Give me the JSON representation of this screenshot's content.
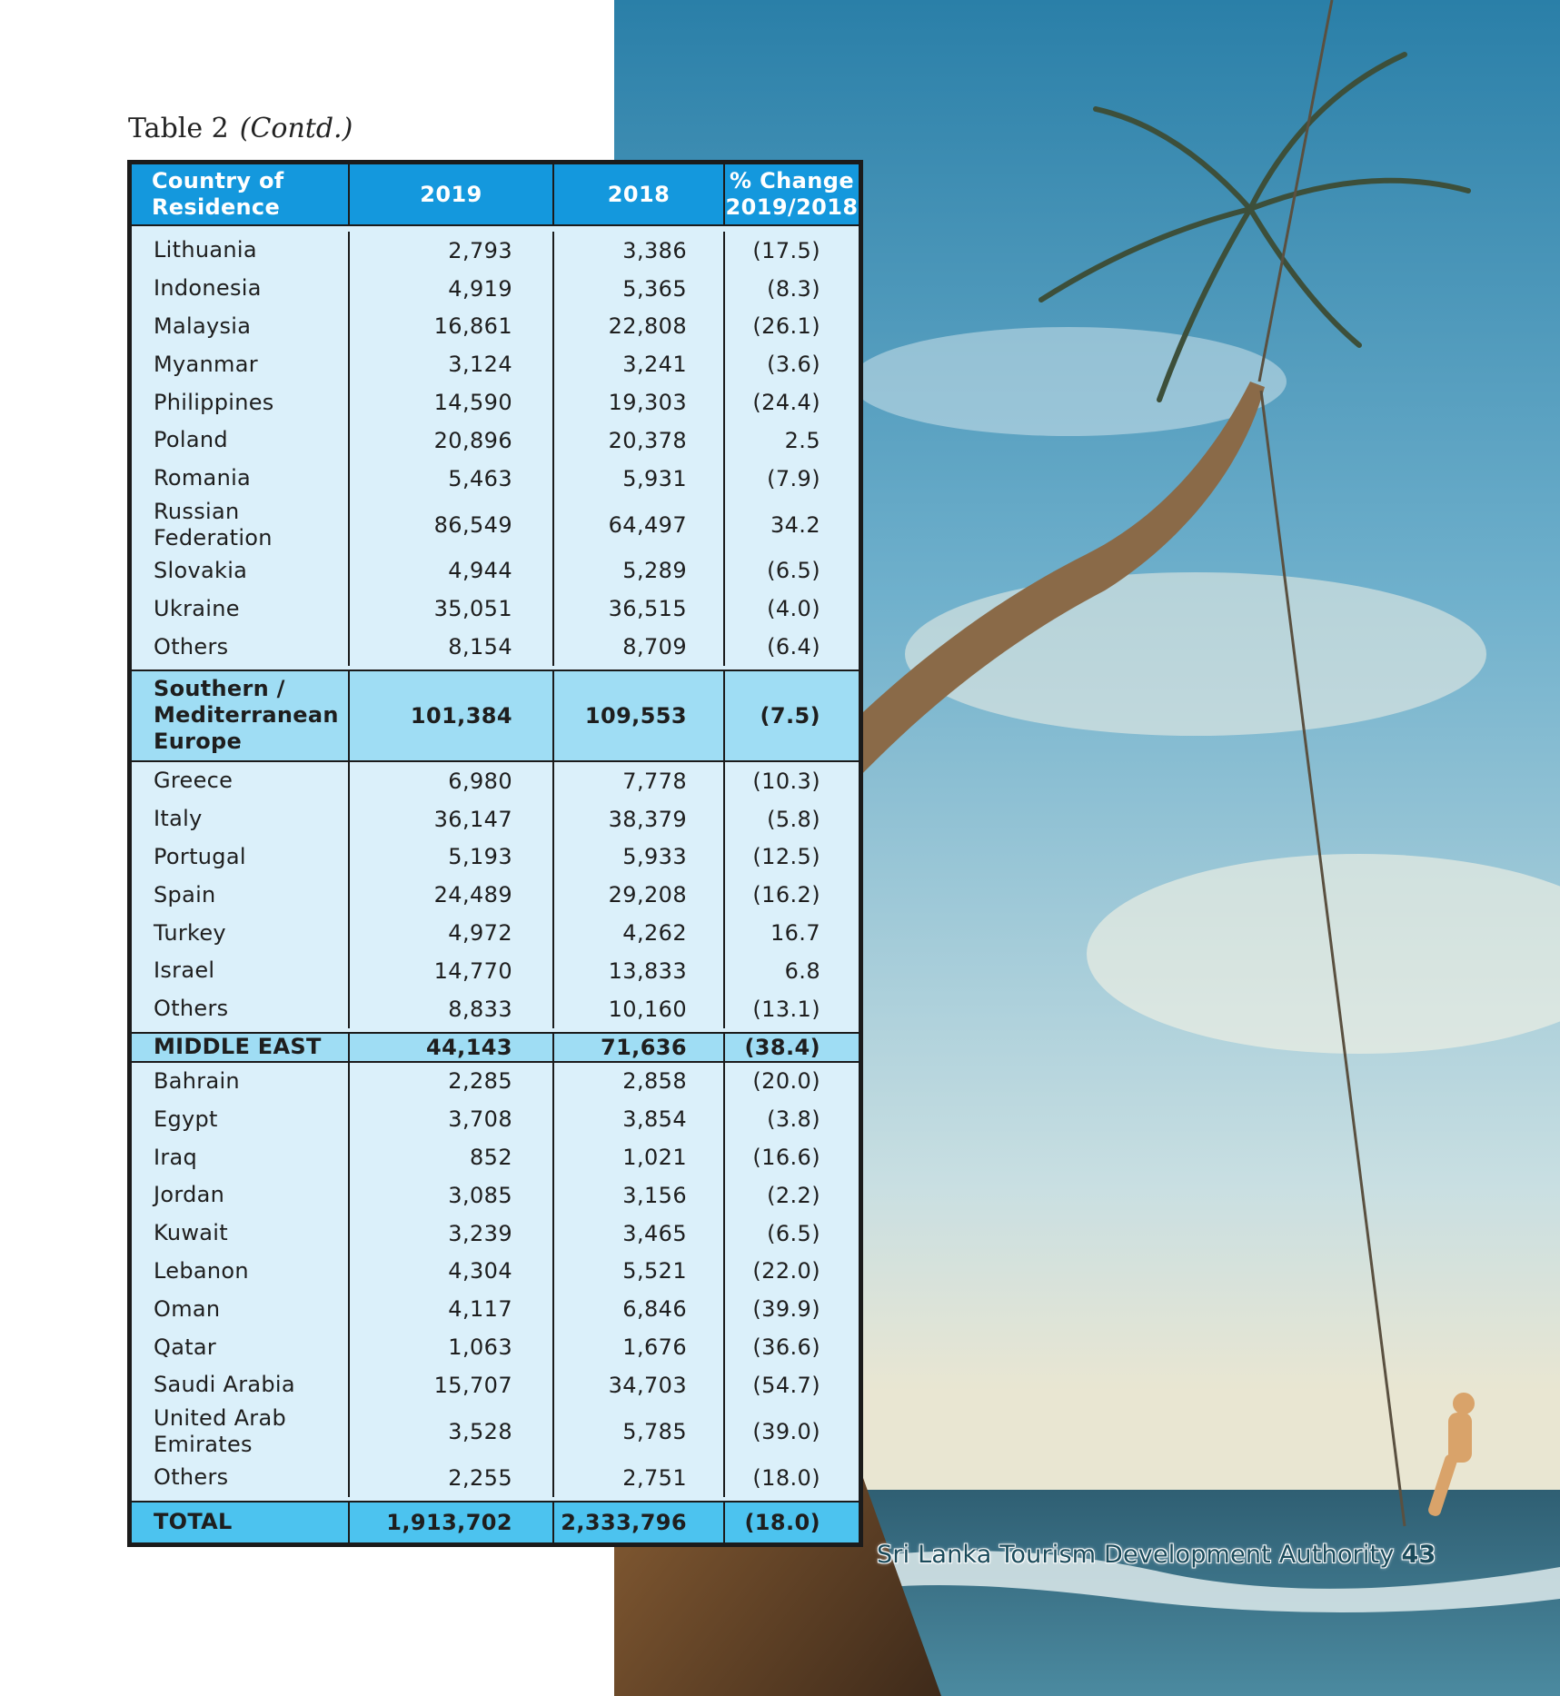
{
  "caption": {
    "title": "Table 2",
    "contd": "(Contd.)"
  },
  "header": {
    "country": "Country of Residence",
    "y2019": "2019",
    "y2018": "2018",
    "pct_line1": "% Change",
    "pct_line2": "2019/2018"
  },
  "group1": [
    {
      "name": "Lithuania",
      "v2019": "2,793",
      "v2018": "3,386",
      "pct": "(17.5)"
    },
    {
      "name": "Indonesia",
      "v2019": "4,919",
      "v2018": "5,365",
      "pct": "(8.3)"
    },
    {
      "name": "Malaysia",
      "v2019": "16,861",
      "v2018": "22,808",
      "pct": "(26.1)"
    },
    {
      "name": "Myanmar",
      "v2019": "3,124",
      "v2018": "3,241",
      "pct": "(3.6)"
    },
    {
      "name": "Philippines",
      "v2019": "14,590",
      "v2018": "19,303",
      "pct": "(24.4)"
    },
    {
      "name": "Poland",
      "v2019": "20,896",
      "v2018": "20,378",
      "pct": "2.5"
    },
    {
      "name": "Romania",
      "v2019": "5,463",
      "v2018": "5,931",
      "pct": "(7.9)"
    },
    {
      "name": "Russian Federation",
      "v2019": "86,549",
      "v2018": "64,497",
      "pct": "34.2"
    },
    {
      "name": "Slovakia",
      "v2019": "4,944",
      "v2018": "5,289",
      "pct": "(6.5)"
    },
    {
      "name": "Ukraine",
      "v2019": "35,051",
      "v2018": "36,515",
      "pct": "(4.0)"
    },
    {
      "name": "Others",
      "v2019": "8,154",
      "v2018": "8,709",
      "pct": "(6.4)"
    }
  ],
  "southern_europe": {
    "name": "Southern / Mediterranean Europe",
    "v2019": "101,384",
    "v2018": "109,553",
    "pct": "(7.5)"
  },
  "group2": [
    {
      "name": "Greece",
      "v2019": "6,980",
      "v2018": "7,778",
      "pct": "(10.3)"
    },
    {
      "name": "Italy",
      "v2019": "36,147",
      "v2018": "38,379",
      "pct": "(5.8)"
    },
    {
      "name": "Portugal",
      "v2019": "5,193",
      "v2018": "5,933",
      "pct": "(12.5)"
    },
    {
      "name": "Spain",
      "v2019": "24,489",
      "v2018": "29,208",
      "pct": "(16.2)"
    },
    {
      "name": "Turkey",
      "v2019": "4,972",
      "v2018": "4,262",
      "pct": "16.7"
    },
    {
      "name": "Israel",
      "v2019": "14,770",
      "v2018": "13,833",
      "pct": "6.8"
    },
    {
      "name": "Others",
      "v2019": "8,833",
      "v2018": "10,160",
      "pct": "(13.1)"
    }
  ],
  "middle_east": {
    "name": "MIDDLE EAST",
    "v2019": "44,143",
    "v2018": "71,636",
    "pct": "(38.4)"
  },
  "group3": [
    {
      "name": "Bahrain",
      "v2019": "2,285",
      "v2018": "2,858",
      "pct": "(20.0)"
    },
    {
      "name": "Egypt",
      "v2019": "3,708",
      "v2018": "3,854",
      "pct": "(3.8)"
    },
    {
      "name": "Iraq",
      "v2019": "852",
      "v2018": "1,021",
      "pct": "(16.6)"
    },
    {
      "name": "Jordan",
      "v2019": "3,085",
      "v2018": "3,156",
      "pct": "(2.2)"
    },
    {
      "name": "Kuwait",
      "v2019": "3,239",
      "v2018": "3,465",
      "pct": "(6.5)"
    },
    {
      "name": "Lebanon",
      "v2019": "4,304",
      "v2018": "5,521",
      "pct": "(22.0)"
    },
    {
      "name": "Oman",
      "v2019": "4,117",
      "v2018": "6,846",
      "pct": "(39.9)"
    },
    {
      "name": "Qatar",
      "v2019": "1,063",
      "v2018": "1,676",
      "pct": "(36.6)"
    },
    {
      "name": "Saudi Arabia",
      "v2019": "15,707",
      "v2018": "34,703",
      "pct": "(54.7)"
    },
    {
      "name": "United Arab Emirates",
      "v2019": "3,528",
      "v2018": "5,785",
      "pct": "(39.0)"
    },
    {
      "name": "Others",
      "v2019": "2,255",
      "v2018": "2,751",
      "pct": "(18.0)"
    }
  ],
  "total": {
    "name": "TOTAL",
    "v2019": "1,913,702",
    "v2018": "2,333,796",
    "pct": "(18.0)"
  },
  "footer": {
    "org": "Sri Lanka Tourism Development Authority",
    "page": "43"
  },
  "colors": {
    "header_blue": "#1498dd",
    "row_light": "#dbf0fa",
    "subtotal_blue": "#9fddf4",
    "total_blue": "#4cc3ef"
  }
}
